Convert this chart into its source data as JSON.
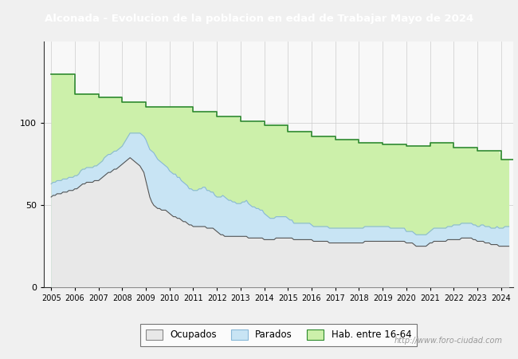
{
  "title": "Alconada - Evolucion de la poblacion en edad de Trabajar Mayo de 2024",
  "title_bg": "#4a7abf",
  "title_color": "white",
  "ylim": [
    0,
    150
  ],
  "yticks": [
    0,
    50,
    100
  ],
  "xmin": 2004.7,
  "xmax": 2024.5,
  "plot_bg": "#f8f8f8",
  "grid_color": "#cccccc",
  "watermark": "http://www.foro-ciudad.com",
  "legend_labels": [
    "Ocupados",
    "Parados",
    "Hab. entre 16-64"
  ],
  "hab_edge": "#2d8a2d",
  "hab_fill": "#ccf0aa",
  "ocu_edge": "#555555",
  "ocu_fill": "#e8e8e8",
  "par_edge": "#88b8d8",
  "par_fill": "#c8e4f4",
  "years_annual": [
    2005,
    2006,
    2007,
    2008,
    2009,
    2010,
    2011,
    2012,
    2013,
    2014,
    2015,
    2016,
    2017,
    2018,
    2019,
    2020,
    2021,
    2022,
    2023,
    2024
  ],
  "hab_annual": [
    130,
    118,
    116,
    113,
    110,
    110,
    107,
    104,
    101,
    99,
    95,
    92,
    90,
    88,
    87,
    86,
    88,
    85,
    83,
    78
  ],
  "ocu_monthly": [
    55,
    56,
    56,
    57,
    57,
    57,
    58,
    58,
    58,
    59,
    59,
    59,
    60,
    60,
    61,
    62,
    63,
    63,
    64,
    64,
    64,
    64,
    65,
    65,
    65,
    66,
    67,
    68,
    69,
    70,
    70,
    71,
    72,
    72,
    73,
    74,
    75,
    76,
    77,
    78,
    79,
    78,
    77,
    76,
    75,
    74,
    72,
    70,
    65,
    60,
    55,
    52,
    50,
    49,
    48,
    48,
    47,
    47,
    47,
    46,
    45,
    44,
    43,
    43,
    42,
    42,
    41,
    40,
    40,
    39,
    38,
    38,
    37,
    37,
    37,
    37,
    37,
    37,
    37,
    36,
    36,
    36,
    36,
    35,
    34,
    33,
    32,
    32,
    31,
    31,
    31,
    31,
    31,
    31,
    31,
    31,
    31,
    31,
    31,
    31,
    30,
    30,
    30,
    30,
    30,
    30,
    30,
    30,
    29,
    29,
    29,
    29,
    29,
    29,
    30,
    30,
    30,
    30,
    30,
    30,
    30,
    30,
    30,
    29,
    29,
    29,
    29,
    29,
    29,
    29,
    29,
    29,
    29,
    28,
    28,
    28,
    28,
    28,
    28,
    28,
    28,
    27,
    27,
    27,
    27,
    27,
    27,
    27,
    27,
    27,
    27,
    27,
    27,
    27,
    27,
    27,
    27,
    27,
    27,
    28,
    28,
    28,
    28,
    28,
    28,
    28,
    28,
    28,
    28,
    28,
    28,
    28,
    28,
    28,
    28,
    28,
    28,
    28,
    28,
    28,
    27,
    27,
    27,
    27,
    26,
    25,
    25,
    25,
    25,
    25,
    25,
    26,
    27,
    27,
    28,
    28,
    28,
    28,
    28,
    28,
    28,
    29,
    29,
    29,
    29,
    29,
    29,
    29,
    30,
    30,
    30,
    30,
    30,
    30,
    29,
    29,
    28,
    28,
    28,
    28,
    27,
    27,
    27,
    26,
    26,
    26,
    26,
    25,
    25,
    25,
    25,
    25,
    25
  ],
  "par_monthly": [
    8,
    8,
    8,
    8,
    8,
    8,
    8,
    8,
    8,
    8,
    8,
    8,
    8,
    8,
    8,
    9,
    9,
    9,
    9,
    9,
    9,
    9,
    9,
    9,
    10,
    10,
    10,
    11,
    11,
    11,
    11,
    11,
    11,
    11,
    11,
    11,
    11,
    12,
    13,
    14,
    15,
    16,
    17,
    18,
    19,
    20,
    21,
    22,
    25,
    27,
    29,
    31,
    32,
    31,
    30,
    29,
    29,
    28,
    27,
    27,
    26,
    26,
    26,
    26,
    25,
    25,
    24,
    24,
    23,
    23,
    22,
    22,
    22,
    22,
    22,
    23,
    23,
    24,
    24,
    23,
    23,
    22,
    22,
    21,
    21,
    22,
    23,
    24,
    24,
    23,
    22,
    22,
    21,
    21,
    20,
    20,
    20,
    21,
    21,
    22,
    21,
    20,
    19,
    19,
    18,
    18,
    17,
    17,
    16,
    15,
    14,
    13,
    13,
    13,
    13,
    13,
    13,
    13,
    13,
    13,
    12,
    11,
    11,
    10,
    10,
    10,
    10,
    10,
    10,
    10,
    10,
    10,
    9,
    9,
    9,
    9,
    9,
    9,
    9,
    9,
    9,
    9,
    9,
    9,
    9,
    9,
    9,
    9,
    9,
    9,
    9,
    9,
    9,
    9,
    9,
    9,
    9,
    9,
    9,
    9,
    9,
    9,
    9,
    9,
    9,
    9,
    9,
    9,
    9,
    9,
    9,
    9,
    8,
    8,
    8,
    8,
    8,
    8,
    8,
    8,
    7,
    7,
    7,
    7,
    7,
    7,
    7,
    7,
    7,
    7,
    7,
    7,
    7,
    8,
    8,
    8,
    8,
    8,
    8,
    8,
    8,
    8,
    8,
    8,
    9,
    9,
    9,
    9,
    9,
    9,
    9,
    9,
    9,
    9,
    9,
    9,
    9,
    9,
    10,
    10,
    10,
    10,
    10,
    10,
    10,
    10,
    11,
    11,
    11,
    11,
    12,
    12,
    12
  ]
}
